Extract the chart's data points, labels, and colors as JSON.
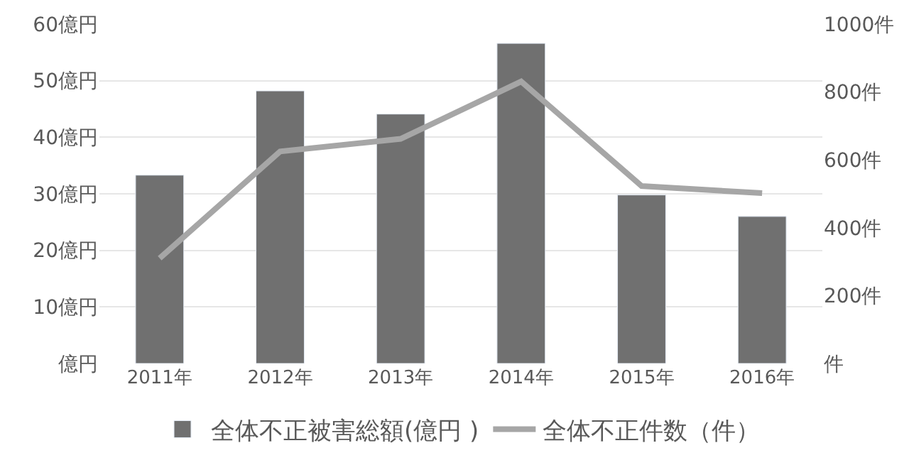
{
  "chart_data": {
    "type": "bar",
    "categories": [
      "2011年",
      "2012年",
      "2013年",
      "2014年",
      "2015年",
      "2016年"
    ],
    "series": [
      {
        "name": "全体不正被害総額(億円 )",
        "color": "#707070",
        "values": [
          33.3,
          48.2,
          44.1,
          56.6,
          29.8,
          26.0
        ]
      },
      {
        "name": "全体不正件数（件）",
        "type": "line",
        "axis": "y2",
        "color": "#a6a6a6",
        "values": [
          310,
          625,
          662,
          831,
          523,
          502
        ]
      }
    ],
    "ylim": [
      0,
      60
    ],
    "yticks": [
      {
        "value": 0,
        "label": "億円"
      },
      {
        "value": 10,
        "label": "10億円"
      },
      {
        "value": 20,
        "label": "20億円"
      },
      {
        "value": 30,
        "label": "30億円"
      },
      {
        "value": 40,
        "label": "40億円"
      },
      {
        "value": 50,
        "label": "50億円"
      },
      {
        "value": 60,
        "label": "60億円"
      }
    ],
    "y2lim": [
      0,
      1000
    ],
    "y2ticks": [
      {
        "value": 0,
        "label": "件"
      },
      {
        "value": 200,
        "label": "200件"
      },
      {
        "value": 400,
        "label": "400件"
      },
      {
        "value": 600,
        "label": "600件"
      },
      {
        "value": 800,
        "label": "800件"
      },
      {
        "value": 1000,
        "label": "1000件"
      }
    ],
    "grid": "y",
    "legend": "bottom",
    "marker": "none",
    "line_style": "solid"
  }
}
